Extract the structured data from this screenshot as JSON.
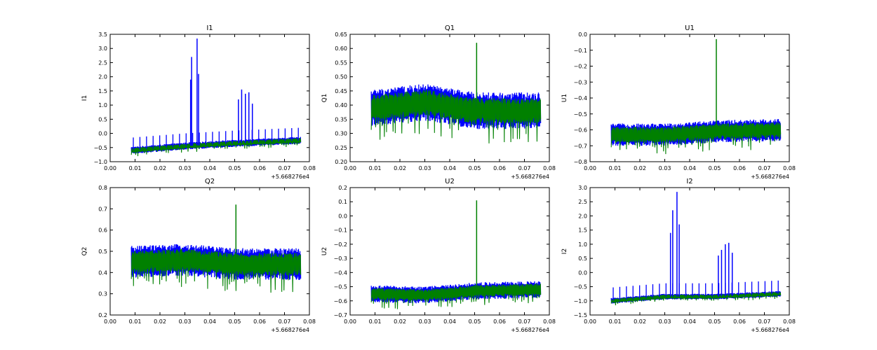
{
  "figure": {
    "colors": {
      "series_a": "#0000ff",
      "series_b": "#008000",
      "axes": "#000000",
      "background": "#ffffff"
    }
  },
  "chart_data": [
    {
      "type": "line",
      "title": "I1",
      "xlabel": "",
      "ylabel": "I1",
      "xlim": [
        0.0,
        0.08
      ],
      "ylim": [
        -1.0,
        3.5
      ],
      "x_offset_label": "+5.668276e4",
      "xticks": [
        "0.00",
        "0.01",
        "0.02",
        "0.03",
        "0.04",
        "0.05",
        "0.06",
        "0.07",
        "0.08"
      ],
      "yticks": [
        "−1.0",
        "−0.5",
        "0.0",
        "0.5",
        "1.0",
        "1.5",
        "2.0",
        "2.5",
        "3.0",
        "3.5"
      ],
      "x_range": [
        0.0085,
        0.0765
      ],
      "baseline": [
        [
          0.0085,
          -0.6
        ],
        [
          0.03,
          -0.45
        ],
        [
          0.05,
          -0.35
        ],
        [
          0.0765,
          -0.25
        ]
      ],
      "band_width": 0.25,
      "spikes": [
        {
          "x": 0.0323,
          "y": 1.9,
          "series": 0
        },
        {
          "x": 0.0327,
          "y": 2.7,
          "series": 0
        },
        {
          "x": 0.0349,
          "y": 3.35,
          "series": 0
        },
        {
          "x": 0.0355,
          "y": 2.1,
          "series": 0
        },
        {
          "x": 0.0515,
          "y": 1.2,
          "series": 0
        },
        {
          "x": 0.0528,
          "y": 1.55,
          "series": 0
        },
        {
          "x": 0.0543,
          "y": 1.4,
          "series": 0
        },
        {
          "x": 0.0557,
          "y": 1.45,
          "series": 0
        },
        {
          "x": 0.0571,
          "y": 1.05,
          "series": 0
        }
      ],
      "periodic_spike_height": 0.3
    },
    {
      "type": "line",
      "title": "Q1",
      "xlabel": "",
      "ylabel": "Q1",
      "xlim": [
        0.0,
        0.08
      ],
      "ylim": [
        0.2,
        0.65
      ],
      "x_offset_label": "+5.668276e4",
      "xticks": [
        "0.00",
        "0.01",
        "0.02",
        "0.03",
        "0.04",
        "0.05",
        "0.06",
        "0.07",
        "0.08"
      ],
      "yticks": [
        "0.20",
        "0.25",
        "0.30",
        "0.35",
        "0.40",
        "0.45",
        "0.50",
        "0.55",
        "0.60",
        "0.65"
      ],
      "x_range": [
        0.0085,
        0.0765
      ],
      "baseline": [
        [
          0.0085,
          0.39
        ],
        [
          0.03,
          0.41
        ],
        [
          0.05,
          0.38
        ],
        [
          0.0765,
          0.38
        ]
      ],
      "band_width": 0.13,
      "spikes": [
        {
          "x": 0.0508,
          "y": 0.62,
          "series": 1
        }
      ],
      "periodic_spike_height": 0.0
    },
    {
      "type": "line",
      "title": "U1",
      "xlabel": "",
      "ylabel": "U1",
      "xlim": [
        0.0,
        0.08
      ],
      "ylim": [
        -0.8,
        0.0
      ],
      "x_offset_label": "+5.668276e4",
      "xticks": [
        "0.00",
        "0.01",
        "0.02",
        "0.03",
        "0.04",
        "0.05",
        "0.06",
        "0.07",
        "0.08"
      ],
      "yticks": [
        "−0.8",
        "−0.7",
        "−0.6",
        "−0.5",
        "−0.4",
        "−0.3",
        "−0.2",
        "−0.1",
        "0.0"
      ],
      "x_range": [
        0.0085,
        0.0765
      ],
      "baseline": [
        [
          0.0085,
          -0.63
        ],
        [
          0.03,
          -0.63
        ],
        [
          0.05,
          -0.61
        ],
        [
          0.0765,
          -0.6
        ]
      ],
      "band_width": 0.14,
      "spikes": [
        {
          "x": 0.0507,
          "y": -0.03,
          "series": 1
        }
      ],
      "periodic_spike_height": 0.0
    },
    {
      "type": "line",
      "title": "Q2",
      "xlabel": "",
      "ylabel": "Q2",
      "xlim": [
        0.0,
        0.08
      ],
      "ylim": [
        0.2,
        0.8
      ],
      "x_offset_label": "+5.668276e4",
      "xticks": [
        "0.00",
        "0.01",
        "0.02",
        "0.03",
        "0.04",
        "0.05",
        "0.06",
        "0.07",
        "0.08"
      ],
      "yticks": [
        "0.2",
        "0.3",
        "0.4",
        "0.5",
        "0.6",
        "0.7",
        "0.8"
      ],
      "x_range": [
        0.0085,
        0.0765
      ],
      "baseline": [
        [
          0.0085,
          0.45
        ],
        [
          0.03,
          0.46
        ],
        [
          0.05,
          0.44
        ],
        [
          0.0765,
          0.44
        ]
      ],
      "band_width": 0.15,
      "spikes": [
        {
          "x": 0.0505,
          "y": 0.72,
          "series": 1
        }
      ],
      "periodic_spike_height": 0.0
    },
    {
      "type": "line",
      "title": "U2",
      "xlabel": "",
      "ylabel": "U2",
      "xlim": [
        0.0,
        0.08
      ],
      "ylim": [
        -0.7,
        0.2
      ],
      "x_offset_label": "+5.668276e4",
      "xticks": [
        "0.00",
        "0.01",
        "0.02",
        "0.03",
        "0.04",
        "0.05",
        "0.06",
        "0.07",
        "0.08"
      ],
      "yticks": [
        "−0.7",
        "−0.6",
        "−0.5",
        "−0.4",
        "−0.3",
        "−0.2",
        "−0.1",
        "0.0",
        "0.1",
        "0.2"
      ],
      "x_range": [
        0.0085,
        0.0765
      ],
      "baseline": [
        [
          0.0085,
          -0.55
        ],
        [
          0.03,
          -0.56
        ],
        [
          0.05,
          -0.53
        ],
        [
          0.0765,
          -0.52
        ]
      ],
      "band_width": 0.12,
      "spikes": [
        {
          "x": 0.0508,
          "y": 0.11,
          "series": 1
        }
      ],
      "periodic_spike_height": 0.0
    },
    {
      "type": "line",
      "title": "I2",
      "xlabel": "",
      "ylabel": "I2",
      "xlim": [
        0.0,
        0.08
      ],
      "ylim": [
        -1.5,
        3.0
      ],
      "x_offset_label": "+5.668276e4",
      "xticks": [
        "0.00",
        "0.01",
        "0.02",
        "0.03",
        "0.04",
        "0.05",
        "0.06",
        "0.07",
        "0.08"
      ],
      "yticks": [
        "−1.5",
        "−1.0",
        "−0.5",
        "0.0",
        "0.5",
        "1.0",
        "1.5",
        "2.0",
        "2.5",
        "3.0"
      ],
      "x_range": [
        0.0085,
        0.0765
      ],
      "baseline": [
        [
          0.0085,
          -1.0
        ],
        [
          0.03,
          -0.85
        ],
        [
          0.05,
          -0.85
        ],
        [
          0.0765,
          -0.75
        ]
      ],
      "band_width": 0.2,
      "spikes": [
        {
          "x": 0.0323,
          "y": 1.4,
          "series": 0
        },
        {
          "x": 0.0332,
          "y": 2.2,
          "series": 0
        },
        {
          "x": 0.0349,
          "y": 2.85,
          "series": 0
        },
        {
          "x": 0.0358,
          "y": 1.7,
          "series": 0
        },
        {
          "x": 0.0515,
          "y": 0.6,
          "series": 0
        },
        {
          "x": 0.0528,
          "y": 0.8,
          "series": 0
        },
        {
          "x": 0.0543,
          "y": 1.0,
          "series": 0
        },
        {
          "x": 0.0557,
          "y": 1.05,
          "series": 0
        },
        {
          "x": 0.0571,
          "y": 0.7,
          "series": 0
        }
      ],
      "periodic_spike_height": 0.35
    }
  ]
}
